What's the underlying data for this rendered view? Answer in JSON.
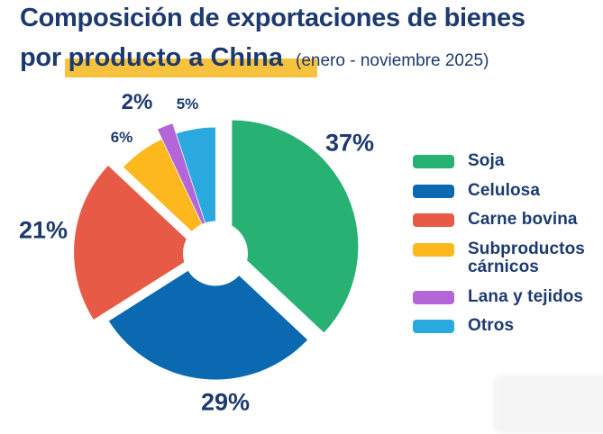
{
  "title": {
    "line1": "Composición de exportaciones de bienes",
    "line2_prefix": "por ",
    "line2_highlight": "producto a China",
    "subtitle": "(enero - noviembre 2025)"
  },
  "colors": {
    "text_navy": "#1d3a70",
    "highlight_yellow": "#f7c33e",
    "background": "#ffffff"
  },
  "chart_data": {
    "type": "pie",
    "title": "Composición de exportaciones de bienes por producto a China (enero - noviembre 2025)",
    "donut": true,
    "hole_ratio": 0.26,
    "start_angle_deg": 0,
    "direction": "clockwise",
    "unit": "%",
    "legend_position": "right",
    "categories": [
      "Soja",
      "Celulosa",
      "Carne bovina",
      "Subproductos cárnicos",
      "Lana y tejidos",
      "Otros"
    ],
    "values": [
      37,
      29,
      21,
      6,
      2,
      5
    ],
    "slices": [
      {
        "name": "Soja",
        "value": 37,
        "label": "37%",
        "color": "#27b173",
        "exploded": true
      },
      {
        "name": "Celulosa",
        "value": 29,
        "label": "29%",
        "color": "#0b69b2",
        "exploded": false
      },
      {
        "name": "Carne bovina",
        "value": 21,
        "label": "21%",
        "color": "#e75b46",
        "exploded": true
      },
      {
        "name": "Subproductos cárnicos",
        "value": 6,
        "label": "6%",
        "color": "#fdb81e",
        "exploded": false
      },
      {
        "name": "Lana y tejidos",
        "value": 2,
        "label": "2%",
        "color": "#b466d8",
        "exploded": true
      },
      {
        "name": "Otros",
        "value": 5,
        "label": "5%",
        "color": "#2ba9de",
        "exploded": false
      }
    ]
  }
}
